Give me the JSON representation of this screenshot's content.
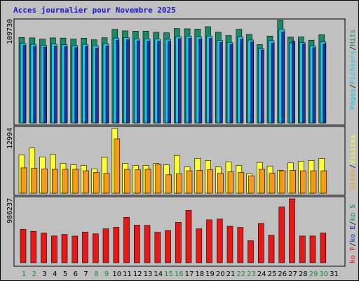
{
  "title": "Acces journalier pour Novembre 2025",
  "colors": {
    "title": "#1c1cc8",
    "frame": "#c0c0c0",
    "plot_bg": "#c0c0c0",
    "hits": "#1a8a6a",
    "files": "#13c8ee",
    "pages": "#1a33aa",
    "visits": "#ffff33",
    "sites": "#f59a1a",
    "kb": "#e81818",
    "weekday_label": "#000000",
    "weekend_label": "#1a8a3a",
    "sep": "#000000"
  },
  "right_labels": {
    "top": [
      {
        "text": "Pages",
        "color": "#13c8ee"
      },
      {
        "text": "/",
        "color": "#000000"
      },
      {
        "text": "Fichiers",
        "color": "#13c8ee"
      },
      {
        "text": "/",
        "color": "#000000"
      },
      {
        "text": "Hits",
        "color": "#1a8a6a"
      }
    ],
    "middle": [
      {
        "text": "Sites",
        "color": "#f59a1a"
      },
      {
        "text": "/",
        "color": "#000000"
      },
      {
        "text": "Visites",
        "color": "#ffff33"
      }
    ],
    "bottom": [
      {
        "text": "ko F",
        "color": "#e81818"
      },
      {
        "text": "/",
        "color": "#000000"
      },
      {
        "text": "ko E",
        "color": "#1a33aa"
      },
      {
        "text": "/",
        "color": "#000000"
      },
      {
        "text": "ko S",
        "color": "#1a8a6a"
      }
    ]
  },
  "chart_data": {
    "type": "bar",
    "title": "Acces journalier pour Novembre 2025",
    "categories": [
      "1",
      "2",
      "3",
      "4",
      "5",
      "6",
      "7",
      "8",
      "9",
      "10",
      "11",
      "12",
      "13",
      "14",
      "15",
      "16",
      "17",
      "18",
      "19",
      "20",
      "21",
      "22",
      "23",
      "24",
      "25",
      "26",
      "27",
      "28",
      "29",
      "30",
      "31"
    ],
    "weekend_days": [
      "1",
      "2",
      "8",
      "9",
      "15",
      "16",
      "22",
      "23",
      "29",
      "30"
    ],
    "panels": [
      {
        "name": "hits-files-pages",
        "y_tick_label": "109730",
        "ymax": 109730,
        "series": [
          {
            "name": "Hits",
            "values": [
              91500,
              91000,
              89800,
              91000,
              90800,
              89800,
              90700,
              89000,
              91200,
              100200,
              98500,
              98200,
              98200,
              97000,
              96500,
              101000,
              100700,
              100500,
              103000,
              97000,
              93500,
              100200,
              94800,
              83800,
              93000,
              109730,
              91800,
              92000,
              88500,
              94300,
              0
            ]
          },
          {
            "name": "Fichiers",
            "values": [
              85000,
              84200,
              83200,
              84500,
              83800,
              82700,
              84200,
              82500,
              84700,
              90800,
              91200,
              90000,
              89800,
              89700,
              89500,
              92500,
              93000,
              92000,
              93000,
              88400,
              86300,
              92000,
              88700,
              79300,
              88000,
              100000,
              85500,
              86000,
              82600,
              86900,
              0
            ]
          },
          {
            "name": "Pages",
            "values": [
              83000,
              82000,
              81000,
              82300,
              81700,
              80500,
              81900,
              80000,
              82400,
              88500,
              88900,
              87800,
              87500,
              87400,
              87300,
              90200,
              90700,
              89700,
              90600,
              86100,
              84100,
              89700,
              86500,
              78000,
              85500,
              97500,
              87500,
              84500,
              80500,
              84800,
              0
            ]
          }
        ]
      },
      {
        "name": "visits-sites",
        "y_tick_label": "12994",
        "ymax": 12994,
        "series": [
          {
            "name": "Visites",
            "values": [
              7700,
              9100,
              7300,
              7800,
              6000,
              5700,
              5600,
              4900,
              7200,
              12994,
              6000,
              5600,
              5600,
              6000,
              5700,
              7600,
              5300,
              7000,
              6600,
              5300,
              6300,
              5600,
              3900,
              6200,
              5400,
              4600,
              6100,
              6400,
              6600,
              7000,
              0
            ]
          },
          {
            "name": "Sites",
            "values": [
              5100,
              5000,
              4900,
              4800,
              4800,
              4800,
              4500,
              4200,
              4000,
              10900,
              4800,
              4700,
              4800,
              5800,
              3700,
              3900,
              4500,
              4600,
              4700,
              4000,
              4300,
              4200,
              3500,
              4800,
              4000,
              4500,
              4600,
              4500,
              4500,
              4500,
              0
            ]
          }
        ]
      },
      {
        "name": "kb",
        "y_tick_label": "986237",
        "ymax": 986237,
        "series": [
          {
            "name": "ko F",
            "values": [
              516000,
              486000,
              456000,
              414000,
              438000,
              412000,
              473000,
              447000,
              524000,
              547000,
              701000,
              581000,
              578000,
              469000,
              496000,
              624000,
              809000,
              523000,
              662000,
              674000,
              564000,
              546000,
              340000,
              605000,
              423000,
              860000,
              986237,
              413000,
              413000,
              457000,
              0
            ]
          }
        ]
      }
    ]
  }
}
